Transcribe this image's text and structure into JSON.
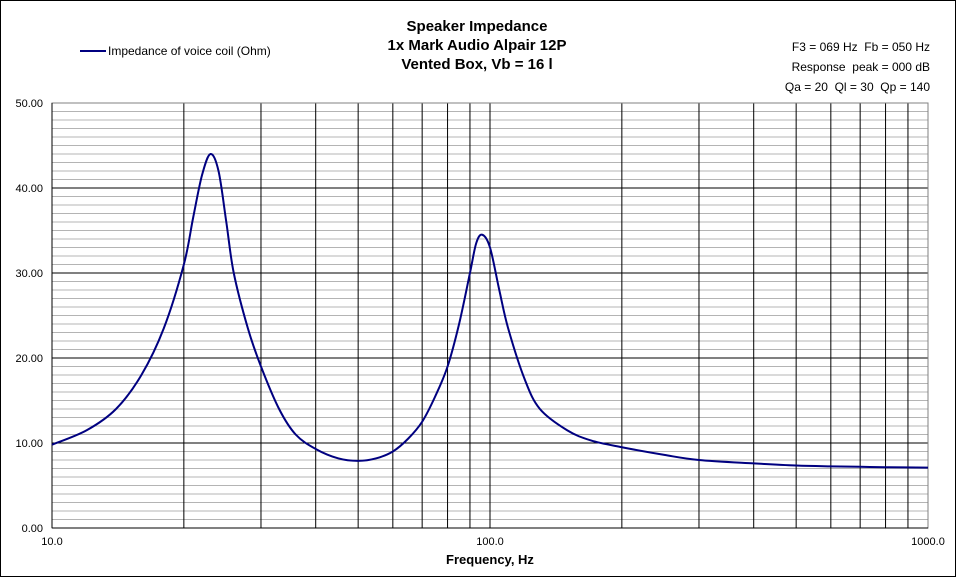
{
  "chart_data": {
    "type": "line",
    "title": [
      "Speaker Impedance",
      "1x Mark Audio Alpair 12P",
      "Vented Box, Vb = 16 l"
    ],
    "info": [
      "F3 = 069 Hz  Fb = 050 Hz",
      "Response  peak = 000 dB",
      "Qa = 20  Ql = 30  Qp = 140"
    ],
    "xlabel": "Frequency, Hz",
    "ylabel": "",
    "xscale": "log",
    "xlim": [
      10,
      1000
    ],
    "ylim": [
      0,
      50
    ],
    "x_tick_labels": [
      "10.0",
      "100.0",
      "1000.0"
    ],
    "x_tick_values": [
      10,
      100,
      1000
    ],
    "y_tick_labels": [
      "0.00",
      "10.00",
      "20.00",
      "30.00",
      "40.00",
      "50.00"
    ],
    "y_tick_values": [
      0,
      10,
      20,
      30,
      40,
      50
    ],
    "grid": true,
    "legend_position": "top-left",
    "series": [
      {
        "name": "Impedance of voice coil (Ohm)",
        "color": "#000080",
        "x": [
          10,
          12,
          14,
          16,
          18,
          20,
          21,
          22,
          23,
          24,
          25,
          26,
          28,
          30,
          33,
          36,
          40,
          45,
          50,
          55,
          60,
          65,
          70,
          75,
          80,
          85,
          90,
          93,
          96,
          100,
          105,
          110,
          120,
          130,
          150,
          170,
          200,
          250,
          300,
          400,
          500,
          600,
          700,
          800,
          1000
        ],
        "y": [
          9.8,
          11.5,
          14.0,
          18.0,
          23.5,
          31.0,
          36.5,
          41.5,
          44.0,
          42.0,
          36.0,
          30.0,
          23.5,
          19.0,
          14.0,
          11.0,
          9.3,
          8.2,
          7.9,
          8.2,
          9.0,
          10.5,
          12.5,
          15.5,
          19.0,
          24.0,
          30.0,
          33.5,
          34.5,
          33.0,
          28.0,
          23.5,
          17.5,
          14.0,
          11.5,
          10.3,
          9.5,
          8.6,
          8.0,
          7.6,
          7.35,
          7.25,
          7.2,
          7.15,
          7.1
        ]
      }
    ]
  }
}
